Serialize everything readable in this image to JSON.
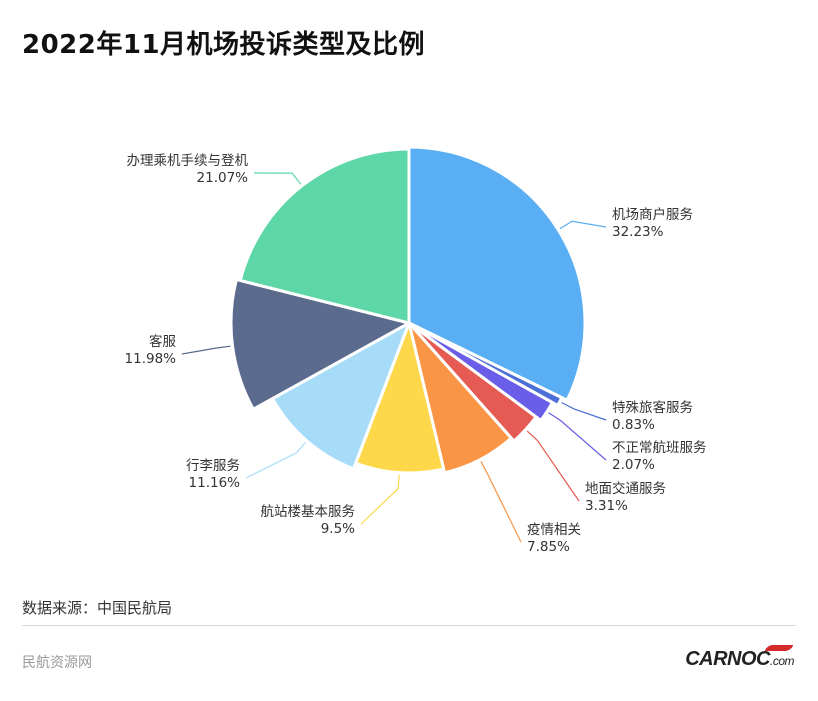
{
  "title": "2022年11月机场投诉类型及比例",
  "source": "数据来源：中国民航局",
  "footer": {
    "left": "民航资源网",
    "logo_main": "CARNOC",
    "logo_suffix": ".com"
  },
  "chart_data": {
    "type": "pie",
    "title": "2022年11月机场投诉类型及比例",
    "slices": [
      {
        "name": "机场商户服务",
        "value": 32.23,
        "label": "32.23%",
        "color": "#5aaef3"
      },
      {
        "name": "特殊旅客服务",
        "value": 0.83,
        "label": "0.83%",
        "color": "#4b6fd6"
      },
      {
        "name": "不正常航班服务",
        "value": 2.07,
        "label": "2.07%",
        "color": "#6a5ee8"
      },
      {
        "name": "地面交通服务",
        "value": 3.31,
        "label": "3.31%",
        "color": "#e55a52"
      },
      {
        "name": "疫情相关",
        "value": 7.85,
        "label": "7.85%",
        "color": "#fa9545"
      },
      {
        "name": "航站楼基本服务",
        "value": 9.5,
        "label": "9.5%",
        "color": "#fcd84a"
      },
      {
        "name": "行李服务",
        "value": 11.16,
        "label": "11.16%",
        "color": "#a6dcf8"
      },
      {
        "name": "客服",
        "value": 11.98,
        "label": "11.98%",
        "color": "#5a6b8e"
      },
      {
        "name": "办理乘机手续与登机",
        "value": 21.07,
        "label": "21.07%",
        "color": "#5dd7a8"
      }
    ]
  }
}
